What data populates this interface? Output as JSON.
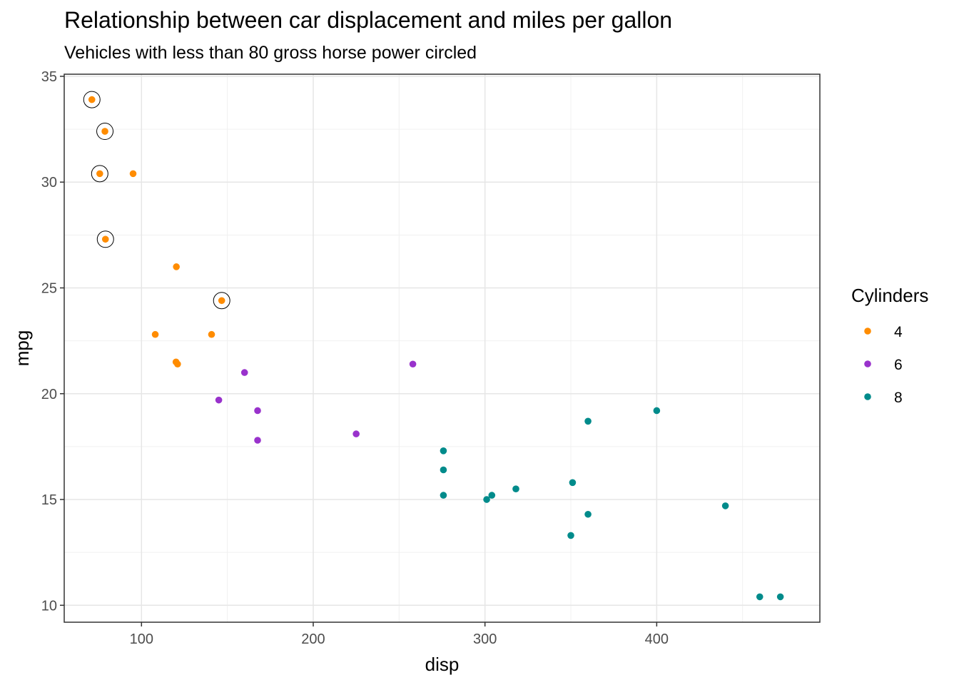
{
  "chart_data": {
    "type": "scatter",
    "title": "Relationship between car displacement and miles per gallon",
    "subtitle": "Vehicles with less than 80 gross horse power circled",
    "xlabel": "disp",
    "ylabel": "mpg",
    "xlim": [
      55,
      495
    ],
    "ylim": [
      9.2,
      35.1
    ],
    "x_ticks": [
      100,
      200,
      300,
      400
    ],
    "y_ticks": [
      10,
      15,
      20,
      25,
      30,
      35
    ],
    "grid": true,
    "legend": {
      "title": "Cylinders",
      "position": "right",
      "entries": [
        {
          "label": "4",
          "color": "#FF8C00"
        },
        {
          "label": "6",
          "color": "#9932CC"
        },
        {
          "label": "8",
          "color": "#008B8B"
        }
      ]
    },
    "series": [
      {
        "name": "4",
        "color": "#FF8C00",
        "points": [
          {
            "x": 71.1,
            "y": 33.9,
            "circled": true
          },
          {
            "x": 78.7,
            "y": 32.4,
            "circled": true
          },
          {
            "x": 75.7,
            "y": 30.4,
            "circled": true
          },
          {
            "x": 95.1,
            "y": 30.4,
            "circled": false
          },
          {
            "x": 79.0,
            "y": 27.3,
            "circled": true
          },
          {
            "x": 120.3,
            "y": 26.0,
            "circled": false
          },
          {
            "x": 146.7,
            "y": 24.4,
            "circled": true
          },
          {
            "x": 108.0,
            "y": 22.8,
            "circled": false
          },
          {
            "x": 140.8,
            "y": 22.8,
            "circled": false
          },
          {
            "x": 120.1,
            "y": 21.5,
            "circled": false
          },
          {
            "x": 121.0,
            "y": 21.4,
            "circled": false
          }
        ]
      },
      {
        "name": "6",
        "color": "#9932CC",
        "points": [
          {
            "x": 258.0,
            "y": 21.4,
            "circled": false
          },
          {
            "x": 160.0,
            "y": 21.0,
            "circled": false
          },
          {
            "x": 145.0,
            "y": 19.7,
            "circled": false
          },
          {
            "x": 167.6,
            "y": 19.2,
            "circled": false
          },
          {
            "x": 225.0,
            "y": 18.1,
            "circled": false
          },
          {
            "x": 167.6,
            "y": 17.8,
            "circled": false
          }
        ]
      },
      {
        "name": "8",
        "color": "#008B8B",
        "points": [
          {
            "x": 400.0,
            "y": 19.2,
            "circled": false
          },
          {
            "x": 360.0,
            "y": 18.7,
            "circled": false
          },
          {
            "x": 275.8,
            "y": 17.3,
            "circled": false
          },
          {
            "x": 275.8,
            "y": 16.4,
            "circled": false
          },
          {
            "x": 351.0,
            "y": 15.8,
            "circled": false
          },
          {
            "x": 318.0,
            "y": 15.5,
            "circled": false
          },
          {
            "x": 304.0,
            "y": 15.2,
            "circled": false
          },
          {
            "x": 275.8,
            "y": 15.2,
            "circled": false
          },
          {
            "x": 301.0,
            "y": 15.0,
            "circled": false
          },
          {
            "x": 440.0,
            "y": 14.7,
            "circled": false
          },
          {
            "x": 360.0,
            "y": 14.3,
            "circled": false
          },
          {
            "x": 350.0,
            "y": 13.3,
            "circled": false
          },
          {
            "x": 460.0,
            "y": 10.4,
            "circled": false
          },
          {
            "x": 472.0,
            "y": 10.4,
            "circled": false
          }
        ]
      }
    ]
  }
}
